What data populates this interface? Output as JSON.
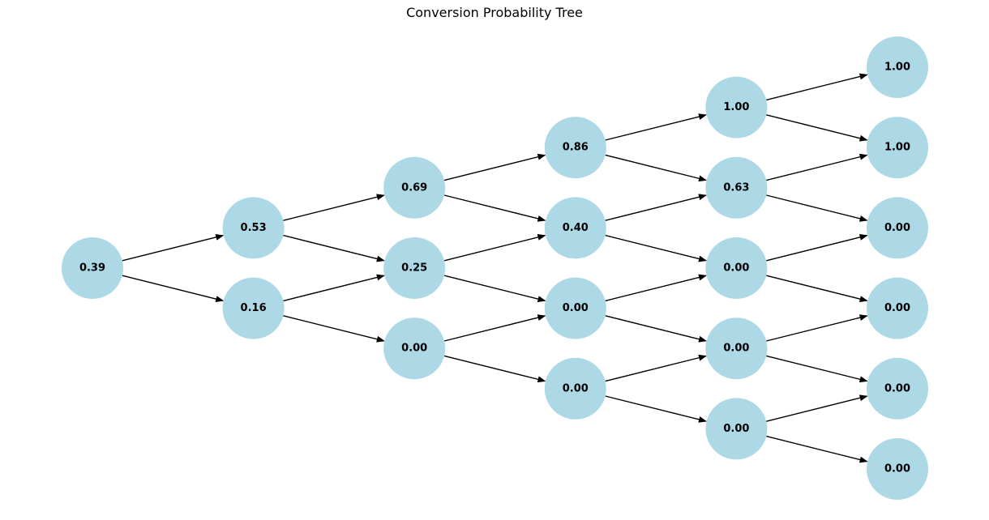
{
  "title": "Conversion Probability Tree",
  "colors": {
    "node_fill": "#add8e6",
    "edge": "#000000",
    "label": "#000000"
  },
  "levels": [
    [
      "0.39"
    ],
    [
      "0.53",
      "0.16"
    ],
    [
      "0.69",
      "0.25",
      "0.00"
    ],
    [
      "0.86",
      "0.40",
      "0.00",
      "0.00"
    ],
    [
      "1.00",
      "0.63",
      "0.00",
      "0.00",
      "0.00"
    ],
    [
      "1.00",
      "1.00",
      "0.00",
      "0.00",
      "0.00",
      "0.00"
    ]
  ]
}
